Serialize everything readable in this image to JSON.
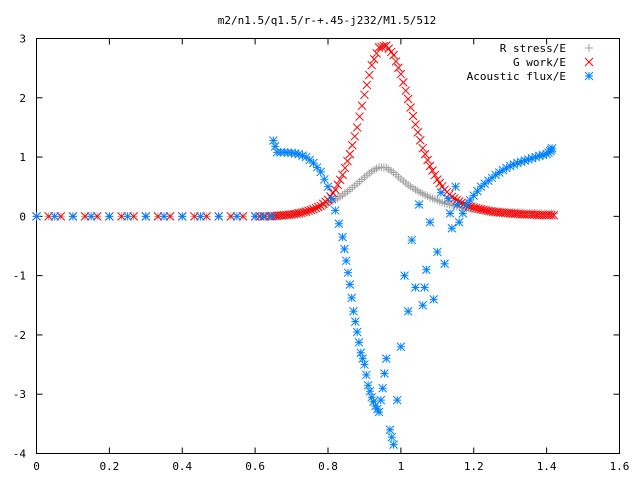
{
  "chart_data": {
    "type": "scatter",
    "title": "m2/n1.5/q1.5/r-+.45-j232/M1.5/512",
    "xlabel": "",
    "ylabel": "",
    "xlim": [
      0,
      1.6
    ],
    "ylim": [
      -4,
      3
    ],
    "x_ticks": [
      0,
      0.2,
      0.4,
      0.6,
      0.8,
      1,
      1.2,
      1.4,
      1.6
    ],
    "x_tick_labels": [
      "0",
      "0.2",
      "0.4",
      "0.6",
      "0.8",
      "1",
      "1.2",
      "1.4",
      "1.6"
    ],
    "y_ticks": [
      -4,
      -3,
      -2,
      -1,
      0,
      1,
      2,
      3
    ],
    "y_tick_labels": [
      "-4",
      "-3",
      "-2",
      "-1",
      "0",
      "1",
      "2",
      "3"
    ],
    "grid": false,
    "legend_position": "top-right",
    "series": [
      {
        "name": "R stress/E",
        "marker": "+",
        "color": "#a0a0a0",
        "x": [
          0.0,
          0.1,
          0.2,
          0.3,
          0.4,
          0.5,
          0.6,
          0.64,
          0.66,
          0.68,
          0.7,
          0.72,
          0.74,
          0.76,
          0.78,
          0.8,
          0.82,
          0.84,
          0.86,
          0.88,
          0.9,
          0.92,
          0.94,
          0.96,
          0.98,
          1.0,
          1.02,
          1.04,
          1.06,
          1.08,
          1.1,
          1.12,
          1.14,
          1.16,
          1.18,
          1.2,
          1.22,
          1.24,
          1.26,
          1.28,
          1.3,
          1.32,
          1.34,
          1.36,
          1.38,
          1.4,
          1.42
        ],
        "y": [
          0,
          0,
          0,
          0,
          0,
          0,
          0,
          0,
          0.01,
          0.02,
          0.04,
          0.06,
          0.09,
          0.12,
          0.16,
          0.21,
          0.28,
          0.36,
          0.45,
          0.55,
          0.66,
          0.76,
          0.83,
          0.82,
          0.74,
          0.63,
          0.53,
          0.45,
          0.38,
          0.32,
          0.27,
          0.22,
          0.19,
          0.16,
          0.14,
          0.12,
          0.11,
          0.1,
          0.09,
          0.08,
          0.07,
          0.07,
          0.06,
          0.06,
          0.05,
          0.05,
          0.05
        ]
      },
      {
        "name": "G work/E",
        "marker": "x",
        "color": "#ff0000",
        "x": [
          0.0,
          0.1,
          0.2,
          0.3,
          0.4,
          0.5,
          0.6,
          0.64,
          0.66,
          0.68,
          0.7,
          0.72,
          0.74,
          0.76,
          0.78,
          0.8,
          0.82,
          0.84,
          0.86,
          0.88,
          0.9,
          0.92,
          0.94,
          0.96,
          0.98,
          1.0,
          1.02,
          1.04,
          1.06,
          1.08,
          1.1,
          1.12,
          1.14,
          1.16,
          1.18,
          1.2,
          1.22,
          1.24,
          1.26,
          1.28,
          1.3,
          1.32,
          1.34,
          1.36,
          1.38,
          1.4,
          1.42
        ],
        "y": [
          0,
          0,
          0,
          0,
          0,
          0,
          0,
          0,
          0.01,
          0.02,
          0.03,
          0.05,
          0.08,
          0.12,
          0.18,
          0.28,
          0.45,
          0.7,
          1.05,
          1.5,
          2.05,
          2.55,
          2.85,
          2.88,
          2.72,
          2.4,
          1.98,
          1.55,
          1.15,
          0.85,
          0.62,
          0.45,
          0.33,
          0.25,
          0.19,
          0.15,
          0.12,
          0.09,
          0.07,
          0.06,
          0.05,
          0.04,
          0.03,
          0.03,
          0.02,
          0.02,
          0.02
        ]
      },
      {
        "name": "Acoustic flux/E",
        "marker": "*",
        "color": "#0080ff",
        "x": [
          0.0,
          0.1,
          0.2,
          0.3,
          0.4,
          0.5,
          0.6,
          0.645,
          0.65,
          0.66,
          0.68,
          0.7,
          0.72,
          0.74,
          0.76,
          0.78,
          0.8,
          0.82,
          0.84,
          0.85,
          0.86,
          0.87,
          0.88,
          0.89,
          0.9,
          0.91,
          0.92,
          0.93,
          0.94,
          0.95,
          0.96,
          0.97,
          0.98,
          0.99,
          1.0,
          1.01,
          1.02,
          1.03,
          1.04,
          1.05,
          1.06,
          1.07,
          1.08,
          1.09,
          1.1,
          1.11,
          1.12,
          1.13,
          1.14,
          1.15,
          1.16,
          1.18,
          1.2,
          1.22,
          1.24,
          1.26,
          1.28,
          1.3,
          1.32,
          1.34,
          1.36,
          1.38,
          1.4,
          1.41,
          1.415
        ],
        "y": [
          0,
          0,
          0,
          0,
          0,
          0,
          0,
          0,
          1.28,
          1.08,
          1.08,
          1.07,
          1.05,
          1.0,
          0.9,
          0.75,
          0.5,
          0.1,
          -0.35,
          -0.75,
          -1.15,
          -1.6,
          -1.95,
          -2.3,
          -2.5,
          -2.85,
          -3.05,
          -3.2,
          -3.3,
          -2.9,
          -2.4,
          -3.6,
          -3.85,
          -3.1,
          -2.2,
          -1.0,
          -1.6,
          -0.4,
          -1.2,
          0.2,
          -1.5,
          -0.9,
          -0.1,
          -1.4,
          -0.6,
          0.4,
          -0.8,
          0.3,
          -0.2,
          0.5,
          -0.1,
          0.2,
          0.35,
          0.5,
          0.6,
          0.7,
          0.78,
          0.85,
          0.9,
          0.94,
          0.98,
          1.02,
          1.05,
          1.1,
          1.15
        ]
      }
    ]
  }
}
